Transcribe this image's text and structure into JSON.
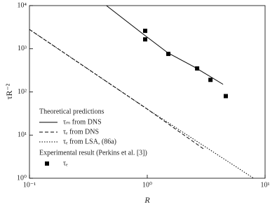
{
  "chart_data": {
    "type": "line",
    "xlabel": "R",
    "ylabel": "τR⁻²",
    "xscale": "log",
    "yscale": "log",
    "xlim": [
      0.1,
      10
    ],
    "ylim": [
      1,
      10000
    ],
    "xticks": [
      {
        "value": 0.1,
        "label": "10⁻¹"
      },
      {
        "value": 1,
        "label": "10⁰"
      },
      {
        "value": 10,
        "label": "10¹"
      }
    ],
    "yticks": [
      {
        "value": 1,
        "label": "10⁰"
      },
      {
        "value": 10,
        "label": "10¹"
      },
      {
        "value": 100,
        "label": "10²"
      },
      {
        "value": 1000,
        "label": "10³"
      },
      {
        "value": 10000,
        "label": "10⁴"
      }
    ],
    "legend_groups": [
      "Theoretical predictions",
      "Experimental result (Perkins et al. [3])"
    ],
    "series": [
      {
        "name": "τₘ from DNS",
        "style": "solid",
        "color": "#000000",
        "group": 0,
        "x": [
          0.45,
          0.9,
          1.5,
          2.5,
          4.4
        ],
        "values": [
          10000,
          2300,
          800,
          380,
          150
        ]
      },
      {
        "name": "τₑ from DNS",
        "style": "dashed",
        "color": "#000000",
        "group": 0,
        "x": [
          0.1,
          1,
          3
        ],
        "values": [
          2800,
          40,
          4.8
        ]
      },
      {
        "name": "τₑ from LSA, (86a)",
        "style": "dotted",
        "color": "#000000",
        "group": 0,
        "x": [
          0.1,
          1,
          8
        ],
        "values": [
          2800,
          40,
          1
        ]
      },
      {
        "name": "τₑ",
        "style": "markers",
        "color": "#000000",
        "group": 1,
        "x": [
          0.96,
          0.96,
          1.51,
          2.65,
          3.44,
          4.64
        ],
        "values": [
          2600,
          1650,
          760,
          350,
          190,
          80
        ]
      }
    ]
  }
}
